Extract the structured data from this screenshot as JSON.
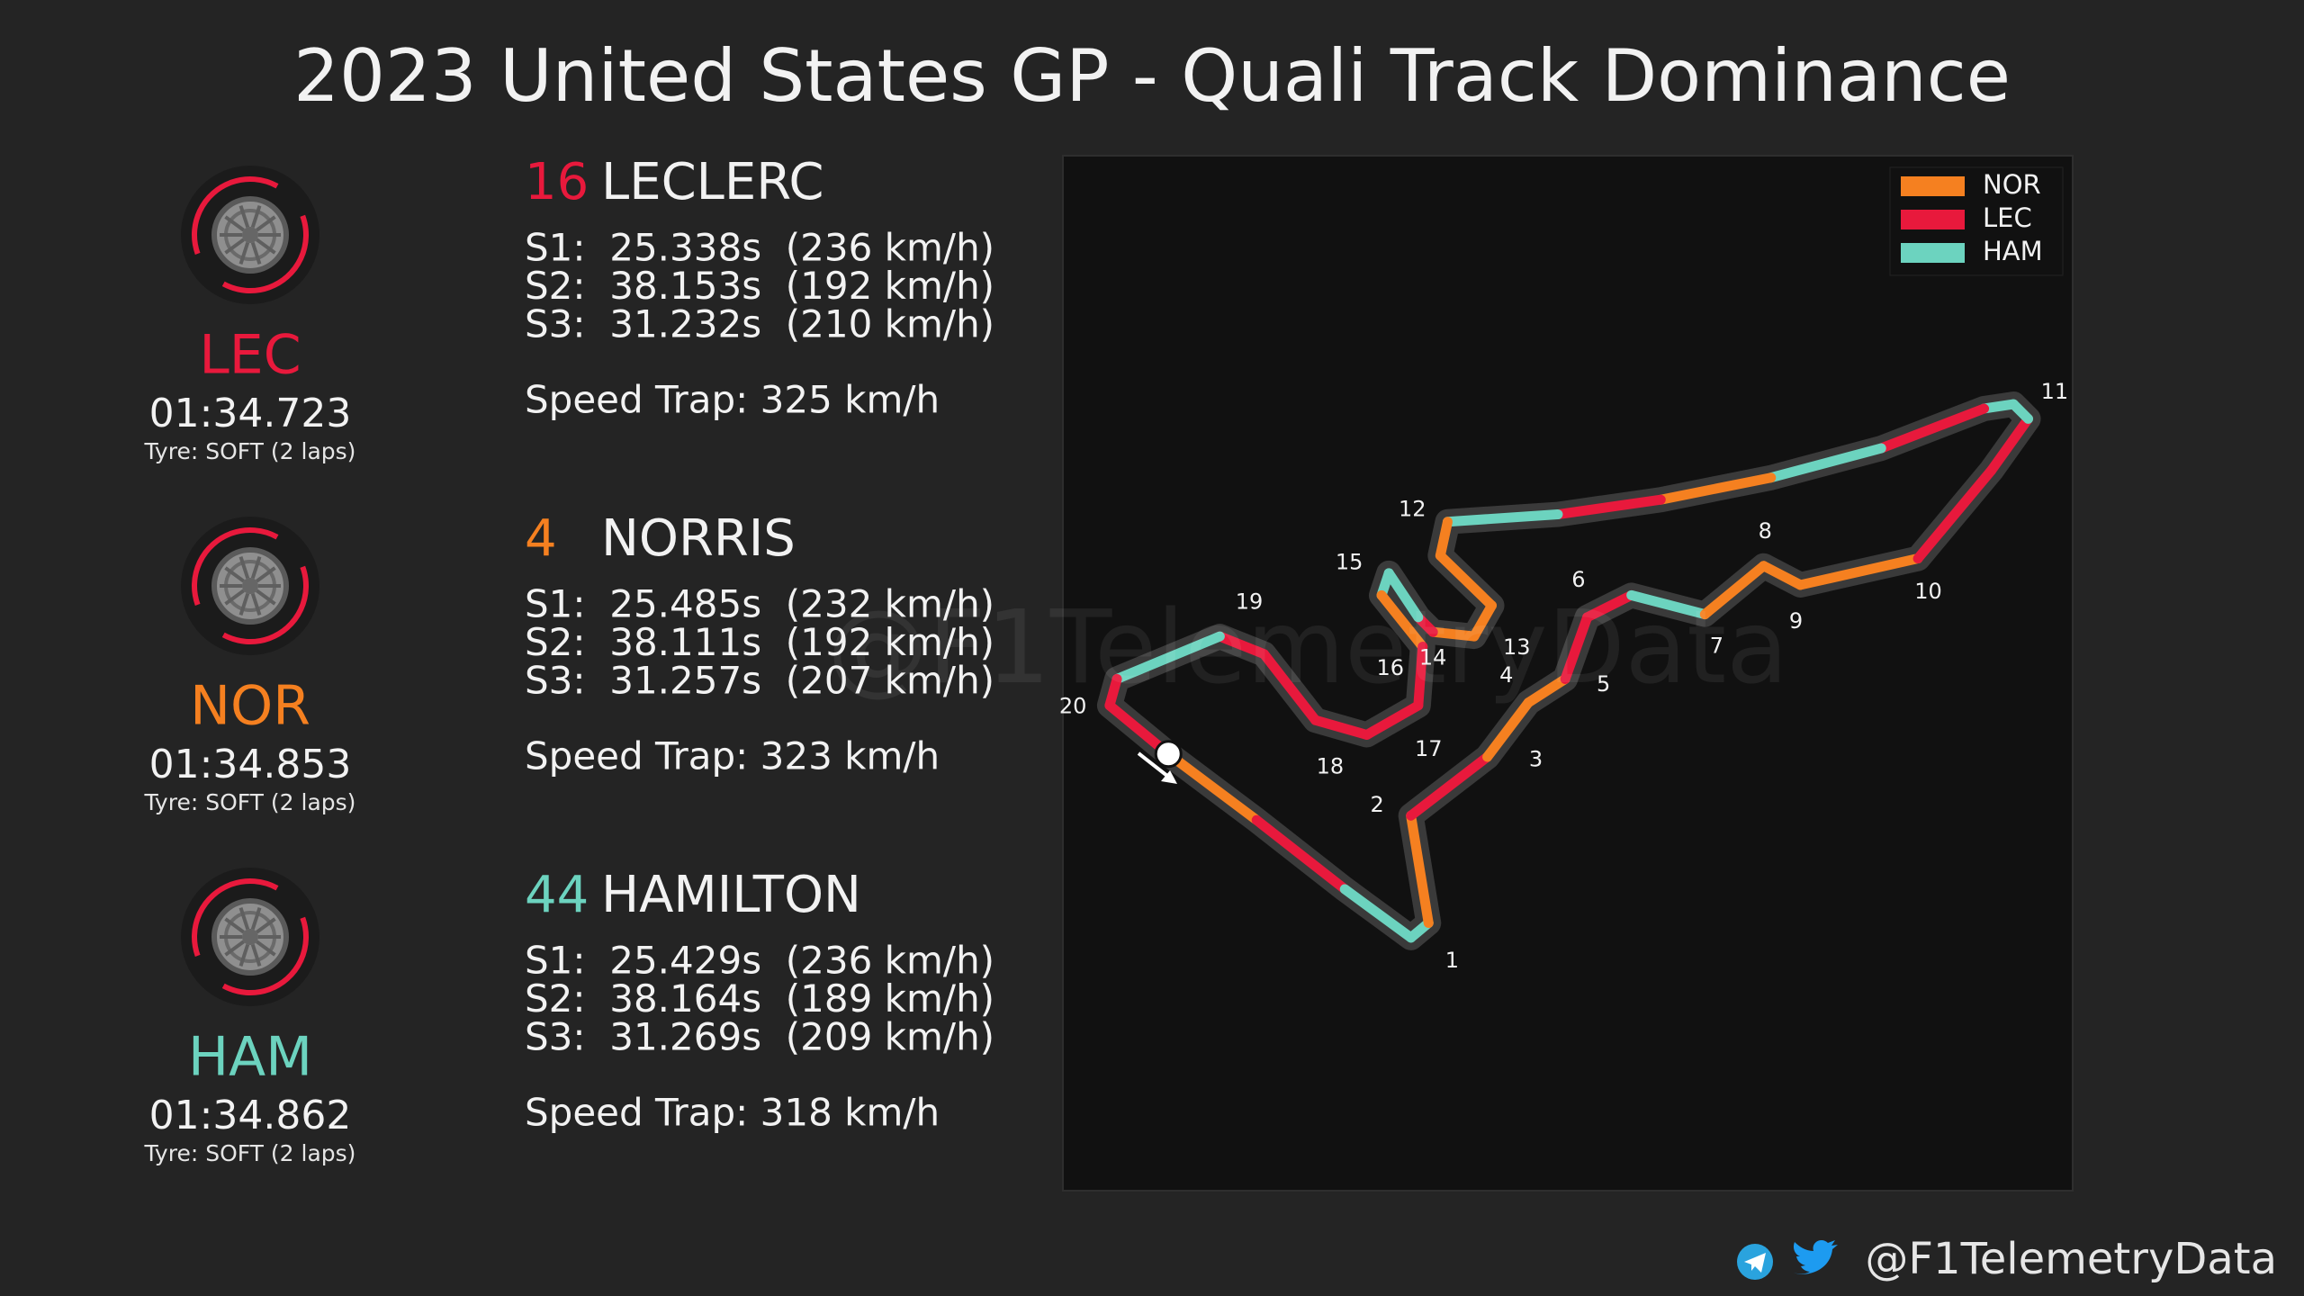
{
  "header": {
    "title": "2023 United States GP - Quali Track Dominance"
  },
  "drivers": [
    {
      "code": "LEC",
      "lap_time": "01:34.723",
      "tyre": "Tyre: SOFT (2 laps)",
      "number": "16",
      "name": "LECLERC",
      "color": "#e8193c",
      "sectors": [
        "S1:  25.338s  (236 km/h)",
        "S2:  38.153s  (192 km/h)",
        "S3:  31.232s  (210 km/h)"
      ],
      "speed_trap": "Speed Trap: 325 km/h"
    },
    {
      "code": "NOR",
      "lap_time": "01:34.853",
      "tyre": "Tyre: SOFT (2 laps)",
      "number": "4",
      "name": "NORRIS",
      "color": "#f58020",
      "sectors": [
        "S1:  25.485s  (232 km/h)",
        "S2:  38.111s  (192 km/h)",
        "S3:  31.257s  (207 km/h)"
      ],
      "speed_trap": "Speed Trap: 323 km/h"
    },
    {
      "code": "HAM",
      "lap_time": "01:34.862",
      "tyre": "Tyre: SOFT (2 laps)",
      "number": "44",
      "name": "HAMILTON",
      "color": "#6cd3bf",
      "sectors": [
        "S1:  25.429s  (236 km/h)",
        "S2:  38.164s  (189 km/h)",
        "S3:  31.269s  (209 km/h)"
      ],
      "speed_trap": "Speed Trap: 318 km/h"
    }
  ],
  "legend": [
    {
      "label": "NOR",
      "color": "#f58020"
    },
    {
      "label": "LEC",
      "color": "#e8193c"
    },
    {
      "label": "HAM",
      "color": "#6cd3bf"
    }
  ],
  "corners": [
    "1",
    "2",
    "3",
    "4",
    "5",
    "6",
    "7",
    "8",
    "9",
    "10",
    "11",
    "12",
    "13",
    "14",
    "15",
    "16",
    "17",
    "18",
    "19",
    "20"
  ],
  "watermark": "@F1TelemetryData",
  "footer": {
    "handle": "@F1TelemetryData"
  }
}
